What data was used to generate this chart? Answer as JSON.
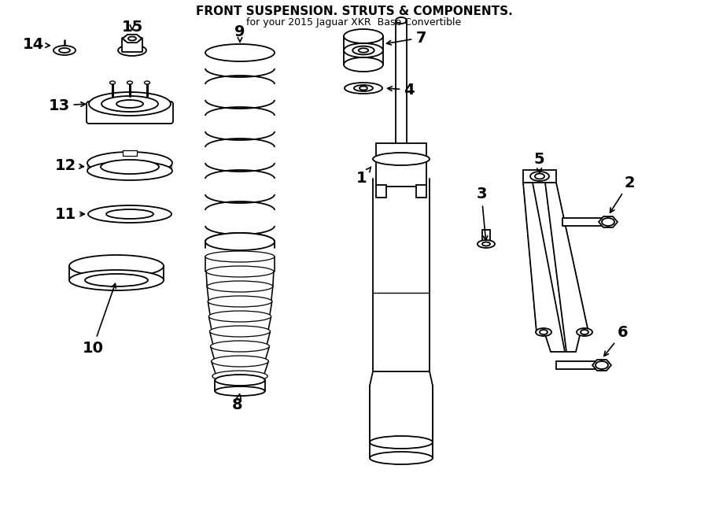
{
  "title": "FRONT SUSPENSION. STRUTS & COMPONENTS.",
  "subtitle": "for your 2015 Jaguar XKR  Base Convertible",
  "bg_color": "#ffffff",
  "line_color": "#000000",
  "fig_width": 9.0,
  "fig_height": 6.62,
  "dpi": 100
}
